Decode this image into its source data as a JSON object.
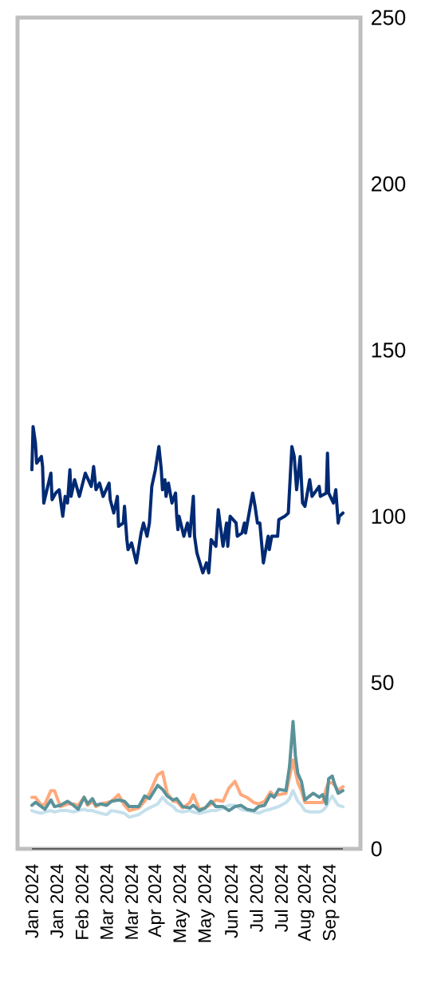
{
  "chart_data": {
    "type": "line",
    "x": [
      "2024-01-01",
      "2024-01-04",
      "2024-01-09",
      "2024-01-12",
      "2024-01-17",
      "2024-01-20",
      "2024-01-25",
      "2024-01-31",
      "2024-02-05",
      "2024-02-09",
      "2024-02-14",
      "2024-02-17",
      "2024-02-21",
      "2024-02-24",
      "2024-02-28",
      "2024-03-04",
      "2024-03-08",
      "2024-03-14",
      "2024-03-19",
      "2024-03-23",
      "2024-03-31",
      "2024-04-05",
      "2024-04-09",
      "2024-04-16",
      "2024-04-20",
      "2024-04-24",
      "2024-04-29",
      "2024-05-02",
      "2024-05-07",
      "2024-05-13",
      "2024-05-16",
      "2024-05-21",
      "2024-05-26",
      "2024-05-31",
      "2024-06-04",
      "2024-06-10",
      "2024-06-15",
      "2024-06-20",
      "2024-06-25",
      "2024-06-30",
      "2024-07-06",
      "2024-07-10",
      "2024-07-15",
      "2024-07-20",
      "2024-07-23",
      "2024-07-27",
      "2024-08-02",
      "2024-08-05",
      "2024-08-08",
      "2024-08-10",
      "2024-08-12",
      "2024-08-15",
      "2024-08-18",
      "2024-08-22",
      "2024-08-25",
      "2024-08-30",
      "2024-09-02",
      "2024-09-05",
      "2024-09-07",
      "2024-09-10",
      "2024-09-12",
      "2024-09-15",
      "2024-09-19"
    ],
    "series": [
      {
        "color": "#c5e0ec",
        "values": [
          11.5,
          11.1,
          10.7,
          11.1,
          11.5,
          11.1,
          11.5,
          11.5,
          11.1,
          11.5,
          11.9,
          11.5,
          11.5,
          11.1,
          10.7,
          10.3,
          11.5,
          11.1,
          10.7,
          9.5,
          10.3,
          11.5,
          12.3,
          13.5,
          15.5,
          13.9,
          12.7,
          11.5,
          11.1,
          11.5,
          11.1,
          10.7,
          11.1,
          11.5,
          11.5,
          12.3,
          13.1,
          13.1,
          11.9,
          11.5,
          11.1,
          10.7,
          11.5,
          11.9,
          12.3,
          12.7,
          13.9,
          15.1,
          17.5,
          15.9,
          14.3,
          13.1,
          11.5,
          11.1,
          11.1,
          11.1,
          11.5,
          12.7,
          14.3,
          15.9,
          14.7,
          13.1,
          12.7
        ]
      },
      {
        "color": "#ffa97c",
        "values": [
          15.5,
          15.5,
          13.1,
          13.5,
          17.5,
          17.5,
          12.7,
          13.5,
          13.5,
          13.1,
          15.5,
          13.1,
          14.3,
          12.7,
          13.5,
          13.9,
          14.3,
          16.3,
          13.1,
          11.5,
          12.3,
          14.3,
          16.7,
          22.3,
          23.1,
          16.7,
          14.3,
          14.3,
          12.3,
          13.9,
          16.3,
          11.9,
          12.3,
          13.5,
          14.7,
          14.3,
          18.3,
          20.3,
          16.3,
          15.5,
          13.9,
          13.5,
          14.3,
          17.1,
          15.9,
          16.3,
          16.7,
          21.5,
          26.7,
          23.1,
          19.9,
          17.5,
          13.9,
          13.9,
          13.9,
          13.9,
          13.9,
          18.3,
          19.9,
          19.9,
          19.1,
          17.5,
          18.7
        ]
      },
      {
        "color": "#5b9299",
        "values": [
          13.1,
          14,
          12.7,
          11.9,
          14.7,
          12.7,
          13.1,
          14.3,
          13.1,
          11.9,
          15.5,
          13.5,
          15.1,
          13.1,
          13.5,
          13.1,
          14.3,
          14.7,
          14.3,
          12.7,
          12.7,
          15.9,
          15.1,
          19.1,
          17.9,
          15.9,
          14.7,
          15.1,
          12.7,
          12.3,
          13.1,
          11.5,
          12.3,
          14.3,
          12.7,
          12.7,
          11.5,
          12.7,
          13.1,
          11.9,
          11.5,
          12.7,
          13.1,
          16.3,
          15.5,
          17.9,
          17.5,
          24.7,
          38.3,
          27.9,
          22.7,
          20.3,
          14.7,
          15.9,
          16.7,
          15.5,
          16.3,
          13.5,
          21.1,
          21.9,
          19.5,
          16.7,
          17.5
        ]
      },
      {
        "color": "#002a73",
        "x": [
          "2024-01-01",
          "2024-01-02",
          "2024-01-04",
          "2024-01-05",
          "2024-01-09",
          "2024-01-10",
          "2024-01-11",
          "2024-01-17",
          "2024-01-18",
          "2024-01-21",
          "2024-01-24",
          "2024-01-27",
          "2024-01-29",
          "2024-01-31",
          "2024-02-02",
          "2024-02-03",
          "2024-02-06",
          "2024-02-10",
          "2024-02-15",
          "2024-02-20",
          "2024-02-22",
          "2024-02-24",
          "2024-02-27",
          "2024-03-01",
          "2024-03-06",
          "2024-03-07",
          "2024-03-10",
          "2024-03-13",
          "2024-03-14",
          "2024-03-18",
          "2024-03-19",
          "2024-03-21",
          "2024-03-22",
          "2024-03-25",
          "2024-03-29",
          "2024-04-02",
          "2024-04-04",
          "2024-04-07",
          "2024-04-09",
          "2024-04-11",
          "2024-04-14",
          "2024-04-17",
          "2024-04-19",
          "2024-04-20",
          "2024-04-22",
          "2024-04-23",
          "2024-04-25",
          "2024-04-28",
          "2024-05-01",
          "2024-05-02",
          "2024-05-03",
          "2024-05-04",
          "2024-05-08",
          "2024-05-11",
          "2024-05-13",
          "2024-05-16",
          "2024-05-17",
          "2024-05-19",
          "2024-05-24",
          "2024-05-27",
          "2024-05-29",
          "2024-05-31",
          "2024-06-04",
          "2024-06-06",
          "2024-06-10",
          "2024-06-13",
          "2024-06-14",
          "2024-06-16",
          "2024-06-21",
          "2024-06-22",
          "2024-06-26",
          "2024-06-28",
          "2024-06-29",
          "2024-07-05",
          "2024-07-07",
          "2024-07-09",
          "2024-07-11",
          "2024-07-14",
          "2024-07-18",
          "2024-07-19",
          "2024-07-21",
          "2024-07-26",
          "2024-07-27",
          "2024-08-01",
          "2024-08-04",
          "2024-08-07",
          "2024-08-09",
          "2024-08-11",
          "2024-08-14",
          "2024-08-16",
          "2024-08-18",
          "2024-08-22",
          "2024-08-24",
          "2024-08-30",
          "2024-08-31",
          "2024-09-05",
          "2024-09-06",
          "2024-09-07",
          "2024-09-11",
          "2024-09-13",
          "2024-09-15",
          "2024-09-16",
          "2024-09-19"
        ],
        "values": [
          114,
          127,
          122,
          116,
          118,
          115,
          104,
          113,
          105,
          107,
          108,
          100,
          106,
          104,
          114,
          106,
          111,
          106,
          113,
          109,
          115,
          108,
          110,
          106,
          110,
          105,
          101,
          106,
          97,
          98,
          103,
          93,
          90,
          92,
          86,
          95,
          98,
          94,
          98,
          109,
          114,
          121,
          114,
          108,
          111,
          106,
          110,
          104,
          107,
          100,
          96,
          100,
          94,
          98,
          94,
          106,
          94,
          89,
          83,
          86,
          83,
          93,
          91,
          102,
          91,
          98,
          91,
          100,
          98,
          94,
          95,
          98,
          95,
          107,
          103,
          98,
          98,
          86,
          94,
          90,
          94,
          94,
          99,
          100,
          101,
          121,
          118,
          108,
          118,
          104,
          103,
          111,
          106,
          109,
          106,
          107,
          119,
          107,
          104,
          108,
          98,
          100,
          101
        ]
      }
    ],
    "xlim": [
      "2024-01-01",
      "2024-09-19"
    ],
    "xticks": [
      {
        "value": "2024-01-01",
        "label": "Jan 2024"
      },
      {
        "value": "2024-01-22",
        "label": "Jan 2024"
      },
      {
        "value": "2024-02-12",
        "label": "Feb 2024"
      },
      {
        "value": "2024-03-04",
        "label": "Mar 2024"
      },
      {
        "value": "2024-03-25",
        "label": "Mar 2024"
      },
      {
        "value": "2024-04-15",
        "label": "Apr 2024"
      },
      {
        "value": "2024-05-06",
        "label": "May 2024"
      },
      {
        "value": "2024-05-27",
        "label": "May 2024"
      },
      {
        "value": "2024-06-17",
        "label": "Jun 2024"
      },
      {
        "value": "2024-07-08",
        "label": "Jul 2024"
      },
      {
        "value": "2024-07-29",
        "label": "Jul 2024"
      },
      {
        "value": "2024-08-19",
        "label": "Aug 2024"
      },
      {
        "value": "2024-09-09",
        "label": "Sep 2024"
      }
    ],
    "ylim": [
      0,
      250
    ],
    "yticks": [
      0,
      50,
      100,
      150,
      200,
      250
    ]
  }
}
